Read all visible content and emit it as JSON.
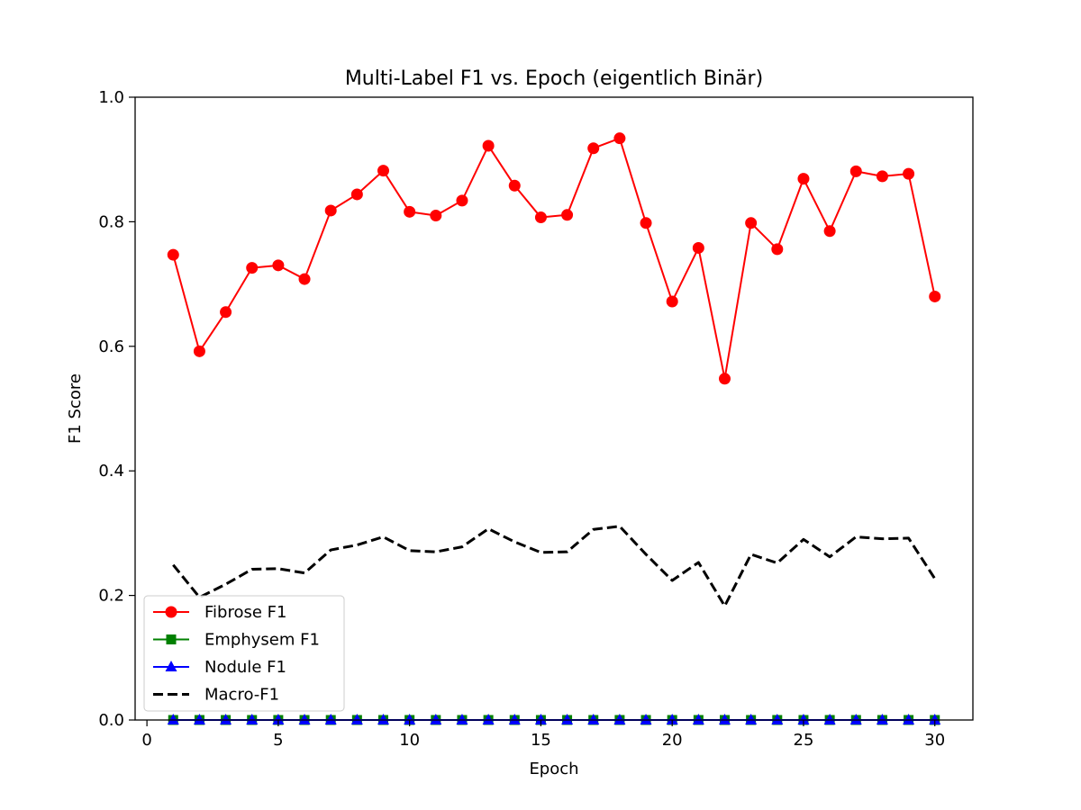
{
  "chart_data": {
    "type": "line",
    "title": "Multi-Label F1 vs. Epoch (eigentlich Binär)",
    "xlabel": "Epoch",
    "ylabel": "F1 Score",
    "xlim": [
      -0.45,
      31.45
    ],
    "ylim": [
      0,
      1.0
    ],
    "xticks": [
      0,
      5,
      10,
      15,
      20,
      25,
      30
    ],
    "yticks": [
      0.0,
      0.2,
      0.4,
      0.6,
      0.8,
      1.0
    ],
    "xtick_labels": [
      "0",
      "5",
      "10",
      "15",
      "20",
      "25",
      "30"
    ],
    "ytick_labels": [
      "0.0",
      "0.2",
      "0.4",
      "0.6",
      "0.8",
      "1.0"
    ],
    "grid": false,
    "legend_position": "lower-left",
    "x": [
      1,
      2,
      3,
      4,
      5,
      6,
      7,
      8,
      9,
      10,
      11,
      12,
      13,
      14,
      15,
      16,
      17,
      18,
      19,
      20,
      21,
      22,
      23,
      24,
      25,
      26,
      27,
      28,
      29,
      30
    ],
    "series": [
      {
        "name": "Fibrose F1",
        "color": "#ff0000",
        "marker": "circle",
        "linestyle": "solid",
        "values": [
          0.747,
          0.592,
          0.655,
          0.726,
          0.73,
          0.708,
          0.818,
          0.844,
          0.882,
          0.816,
          0.81,
          0.834,
          0.922,
          0.858,
          0.807,
          0.811,
          0.918,
          0.934,
          0.798,
          0.672,
          0.758,
          0.548,
          0.798,
          0.756,
          0.869,
          0.785,
          0.881,
          0.873,
          0.877,
          0.68
        ]
      },
      {
        "name": "Emphysem F1",
        "color": "#008000",
        "marker": "square",
        "linestyle": "solid",
        "values": [
          0,
          0,
          0,
          0,
          0,
          0,
          0,
          0,
          0,
          0,
          0,
          0,
          0,
          0,
          0,
          0,
          0,
          0,
          0,
          0,
          0,
          0,
          0,
          0,
          0,
          0,
          0,
          0,
          0,
          0
        ]
      },
      {
        "name": "Nodule F1",
        "color": "#0000ff",
        "marker": "triangle",
        "linestyle": "solid",
        "values": [
          0,
          0,
          0,
          0,
          0,
          0,
          0,
          0,
          0,
          0,
          0,
          0,
          0,
          0,
          0,
          0,
          0,
          0,
          0,
          0,
          0,
          0,
          0,
          0,
          0,
          0,
          0,
          0,
          0,
          0
        ]
      },
      {
        "name": "Macro-F1",
        "color": "#000000",
        "marker": "none",
        "linestyle": "dashed",
        "values": [
          0.249,
          0.197,
          0.218,
          0.242,
          0.243,
          0.236,
          0.273,
          0.281,
          0.294,
          0.272,
          0.27,
          0.278,
          0.307,
          0.286,
          0.269,
          0.27,
          0.306,
          0.311,
          0.266,
          0.224,
          0.253,
          0.183,
          0.266,
          0.252,
          0.29,
          0.262,
          0.294,
          0.291,
          0.292,
          0.227
        ]
      }
    ]
  }
}
